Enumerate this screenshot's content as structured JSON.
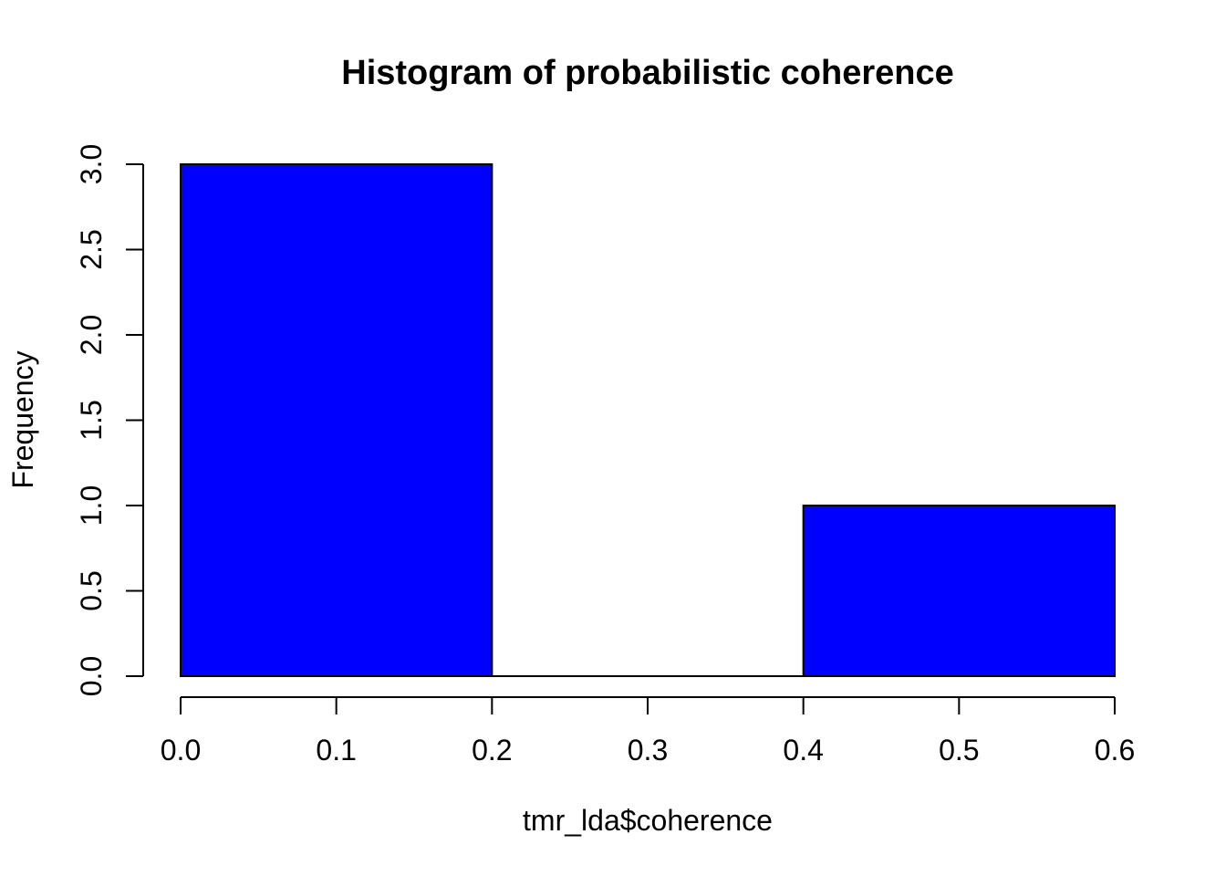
{
  "chart_data": {
    "type": "bar",
    "title": "Histogram of probabilistic coherence",
    "xlabel": "tmr_lda$coherence",
    "ylabel": "Frequency",
    "bins": [
      {
        "x0": 0.0,
        "x1": 0.2,
        "count": 3
      },
      {
        "x0": 0.2,
        "x1": 0.4,
        "count": 0
      },
      {
        "x0": 0.4,
        "x1": 0.6,
        "count": 1
      }
    ],
    "xlim": [
      0.0,
      0.6
    ],
    "ylim": [
      0.0,
      3.0
    ],
    "x_ticks": [
      "0.0",
      "0.1",
      "0.2",
      "0.3",
      "0.4",
      "0.5",
      "0.6"
    ],
    "y_ticks": [
      "0.0",
      "0.5",
      "1.0",
      "1.5",
      "2.0",
      "2.5",
      "3.0"
    ],
    "bar_color": "#0000ff",
    "grid": false
  }
}
